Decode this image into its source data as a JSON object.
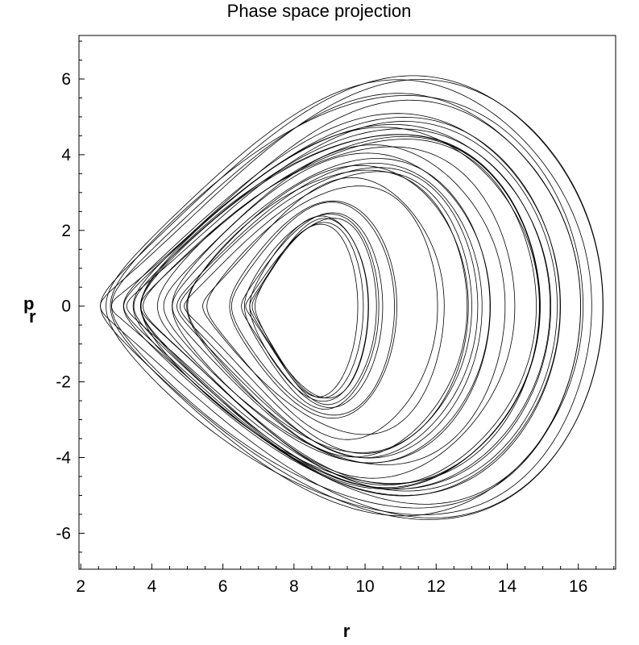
{
  "chart_data": {
    "type": "line",
    "title": "Phase space projection",
    "xlabel": "r",
    "ylabel_main": "p",
    "ylabel_sub": "r",
    "xlim": [
      1.95,
      17.05
    ],
    "ylim": [
      -6.95,
      7.15
    ],
    "xticks": [
      2,
      4,
      6,
      8,
      10,
      12,
      14,
      16
    ],
    "xtick_labels": [
      "2",
      "4",
      "6",
      "8",
      "10",
      "12",
      "14",
      "16"
    ],
    "yticks": [
      -6,
      -4,
      -2,
      0,
      2,
      4,
      6
    ],
    "ytick_labels": [
      "-6",
      "-4",
      "-2",
      "0",
      "2",
      "4",
      "6"
    ],
    "x_minor_step": 0.5,
    "y_minor_step": 0.5,
    "grid": false,
    "legend": "none",
    "line_color": "#000000",
    "series": [
      {
        "orbit_envelope": {
          "r_min": [
            2.55,
            2.8,
            2.95,
            3.2,
            3.5,
            3.9,
            4.3,
            4.7,
            5.2,
            5.7,
            6.1,
            6.6,
            7.0,
            7.4
          ],
          "r_max": [
            16.7,
            16.2,
            15.9,
            15.5,
            15.2,
            14.6,
            14.0,
            13.3,
            12.6,
            11.8,
            11.0,
            10.4,
            9.6,
            8.9
          ],
          "p_max": [
            6.9,
            6.4,
            6.1,
            5.8,
            5.4,
            5.1,
            4.8,
            4.4,
            4.0,
            3.6,
            3.2,
            2.8,
            2.4,
            2.0
          ],
          "p_min": [
            -6.6,
            -6.3,
            -6.1,
            -5.8,
            -5.5,
            -5.2,
            -4.9,
            -4.6,
            -4.2,
            -3.8,
            -3.4,
            -3.0,
            -2.6,
            -2.2
          ]
        },
        "cycles": 36
      }
    ]
  }
}
